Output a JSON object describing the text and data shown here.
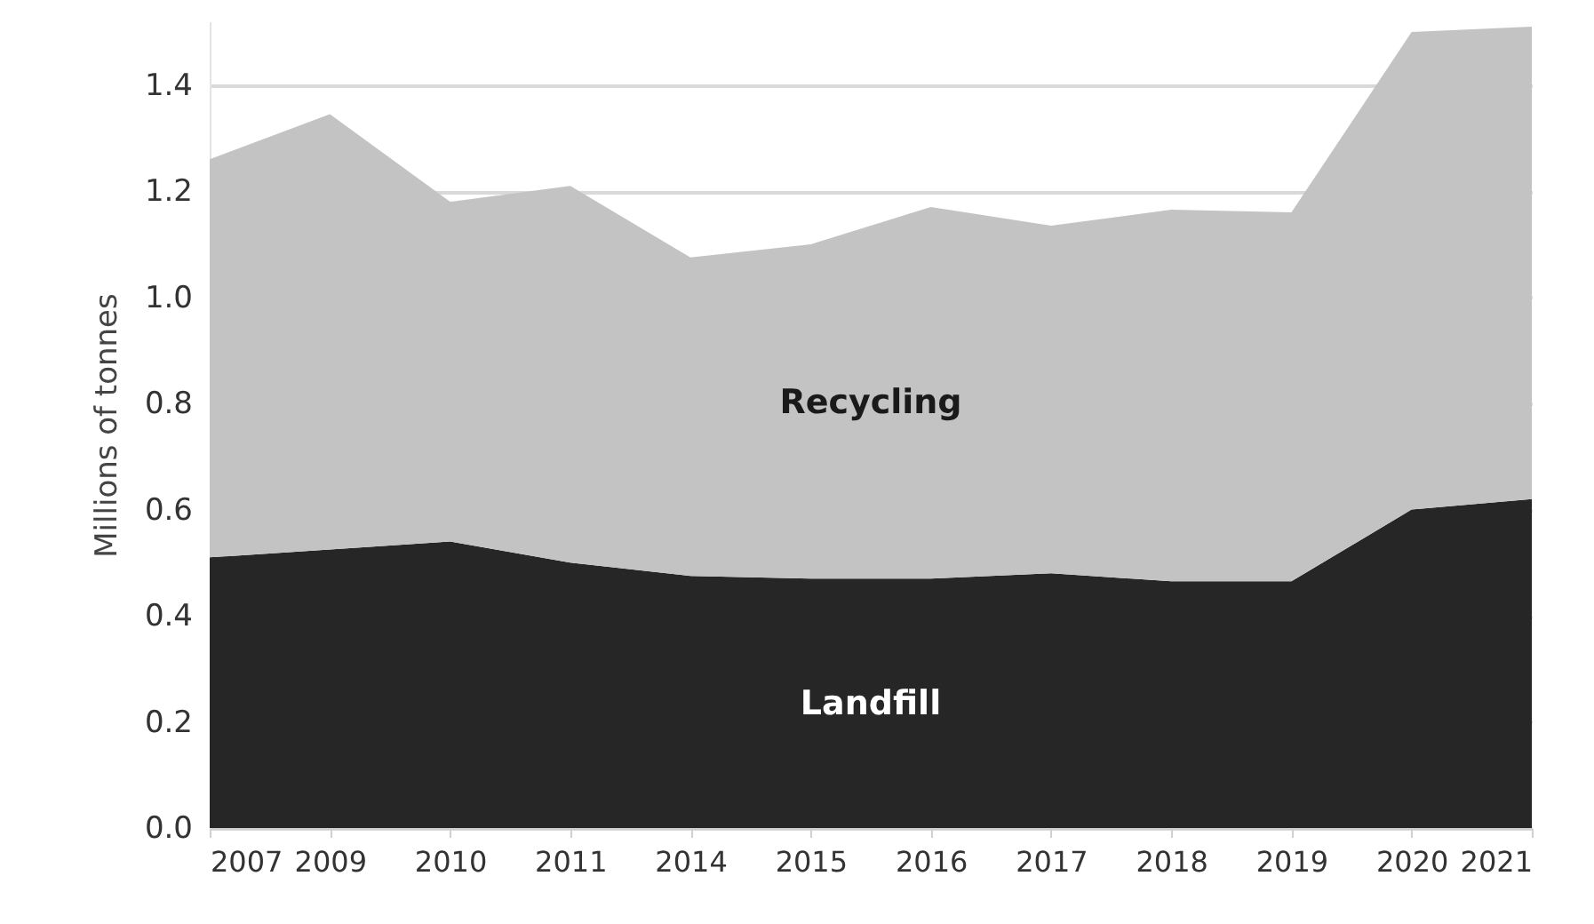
{
  "chart_data": {
    "type": "area",
    "stacked": true,
    "ylabel": "Millions of tonnes",
    "categories": [
      "2007",
      "2009",
      "2010",
      "2011",
      "2014",
      "2015",
      "2016",
      "2017",
      "2018",
      "2019",
      "2020",
      "2021"
    ],
    "series": [
      {
        "name": "Landfill",
        "color": "#262626",
        "values": [
          0.51,
          0.525,
          0.54,
          0.5,
          0.475,
          0.47,
          0.47,
          0.48,
          0.465,
          0.465,
          0.6,
          0.62
        ]
      },
      {
        "name": "Recycling",
        "color": "#c3c3c3",
        "values": [
          0.75,
          0.82,
          0.64,
          0.71,
          0.6,
          0.63,
          0.7,
          0.655,
          0.7,
          0.695,
          0.9,
          0.89
        ]
      }
    ],
    "ylim": [
      0,
      1.52
    ],
    "yticks": [
      {
        "value": 0,
        "label": "0.0"
      },
      {
        "value": 0.2,
        "label": "0.2"
      },
      {
        "value": 0.4,
        "label": "0.4"
      },
      {
        "value": 0.6,
        "label": "0.6"
      },
      {
        "value": 0.8,
        "label": "0.8"
      },
      {
        "value": 1,
        "label": "1.0"
      },
      {
        "value": 1.2,
        "label": "1.2"
      },
      {
        "value": 1.4,
        "label": "1.4"
      }
    ],
    "grid": "y"
  }
}
